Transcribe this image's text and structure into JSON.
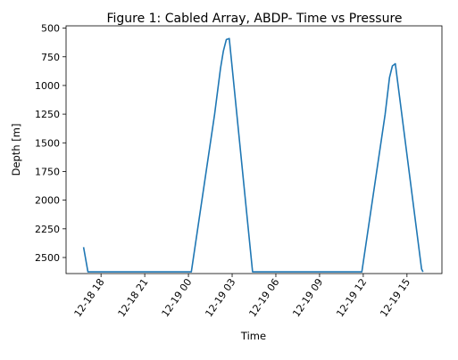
{
  "chart_data": {
    "type": "line",
    "title": "Figure 1: Cabled Array, ABDP- Time vs Pressure",
    "xlabel": "Time",
    "ylabel": "Depth [m]",
    "y_inverted": true,
    "xlim": [
      "2018-12-18 15:36",
      "2018-12-19 17:24"
    ],
    "ylim": [
      2640,
      480
    ],
    "x_ticks": [
      "12-18 18",
      "12-18 21",
      "12-19 00",
      "12-19 03",
      "12-19 06",
      "12-19 09",
      "12-19 12",
      "12-19 15"
    ],
    "y_ticks": [
      500,
      750,
      1000,
      1250,
      1500,
      1750,
      2000,
      2250,
      2500
    ],
    "series": [
      {
        "color": "#1f77b4",
        "x": [
          "2018-12-18 16:48",
          "2018-12-18 17:06",
          "2018-12-19 00:12",
          "2018-12-19 01:48",
          "2018-12-19 02:12",
          "2018-12-19 02:24",
          "2018-12-19 02:36",
          "2018-12-19 02:48",
          "2018-12-19 04:24",
          "2018-12-19 11:54",
          "2018-12-19 13:30",
          "2018-12-19 13:48",
          "2018-12-19 14:00",
          "2018-12-19 14:12",
          "2018-12-19 16:00",
          "2018-12-19 16:06"
        ],
        "y": [
          2410,
          2625,
          2625,
          1250,
          850,
          700,
          600,
          590,
          2625,
          2625,
          1250,
          930,
          830,
          810,
          2600,
          2625
        ]
      }
    ]
  }
}
